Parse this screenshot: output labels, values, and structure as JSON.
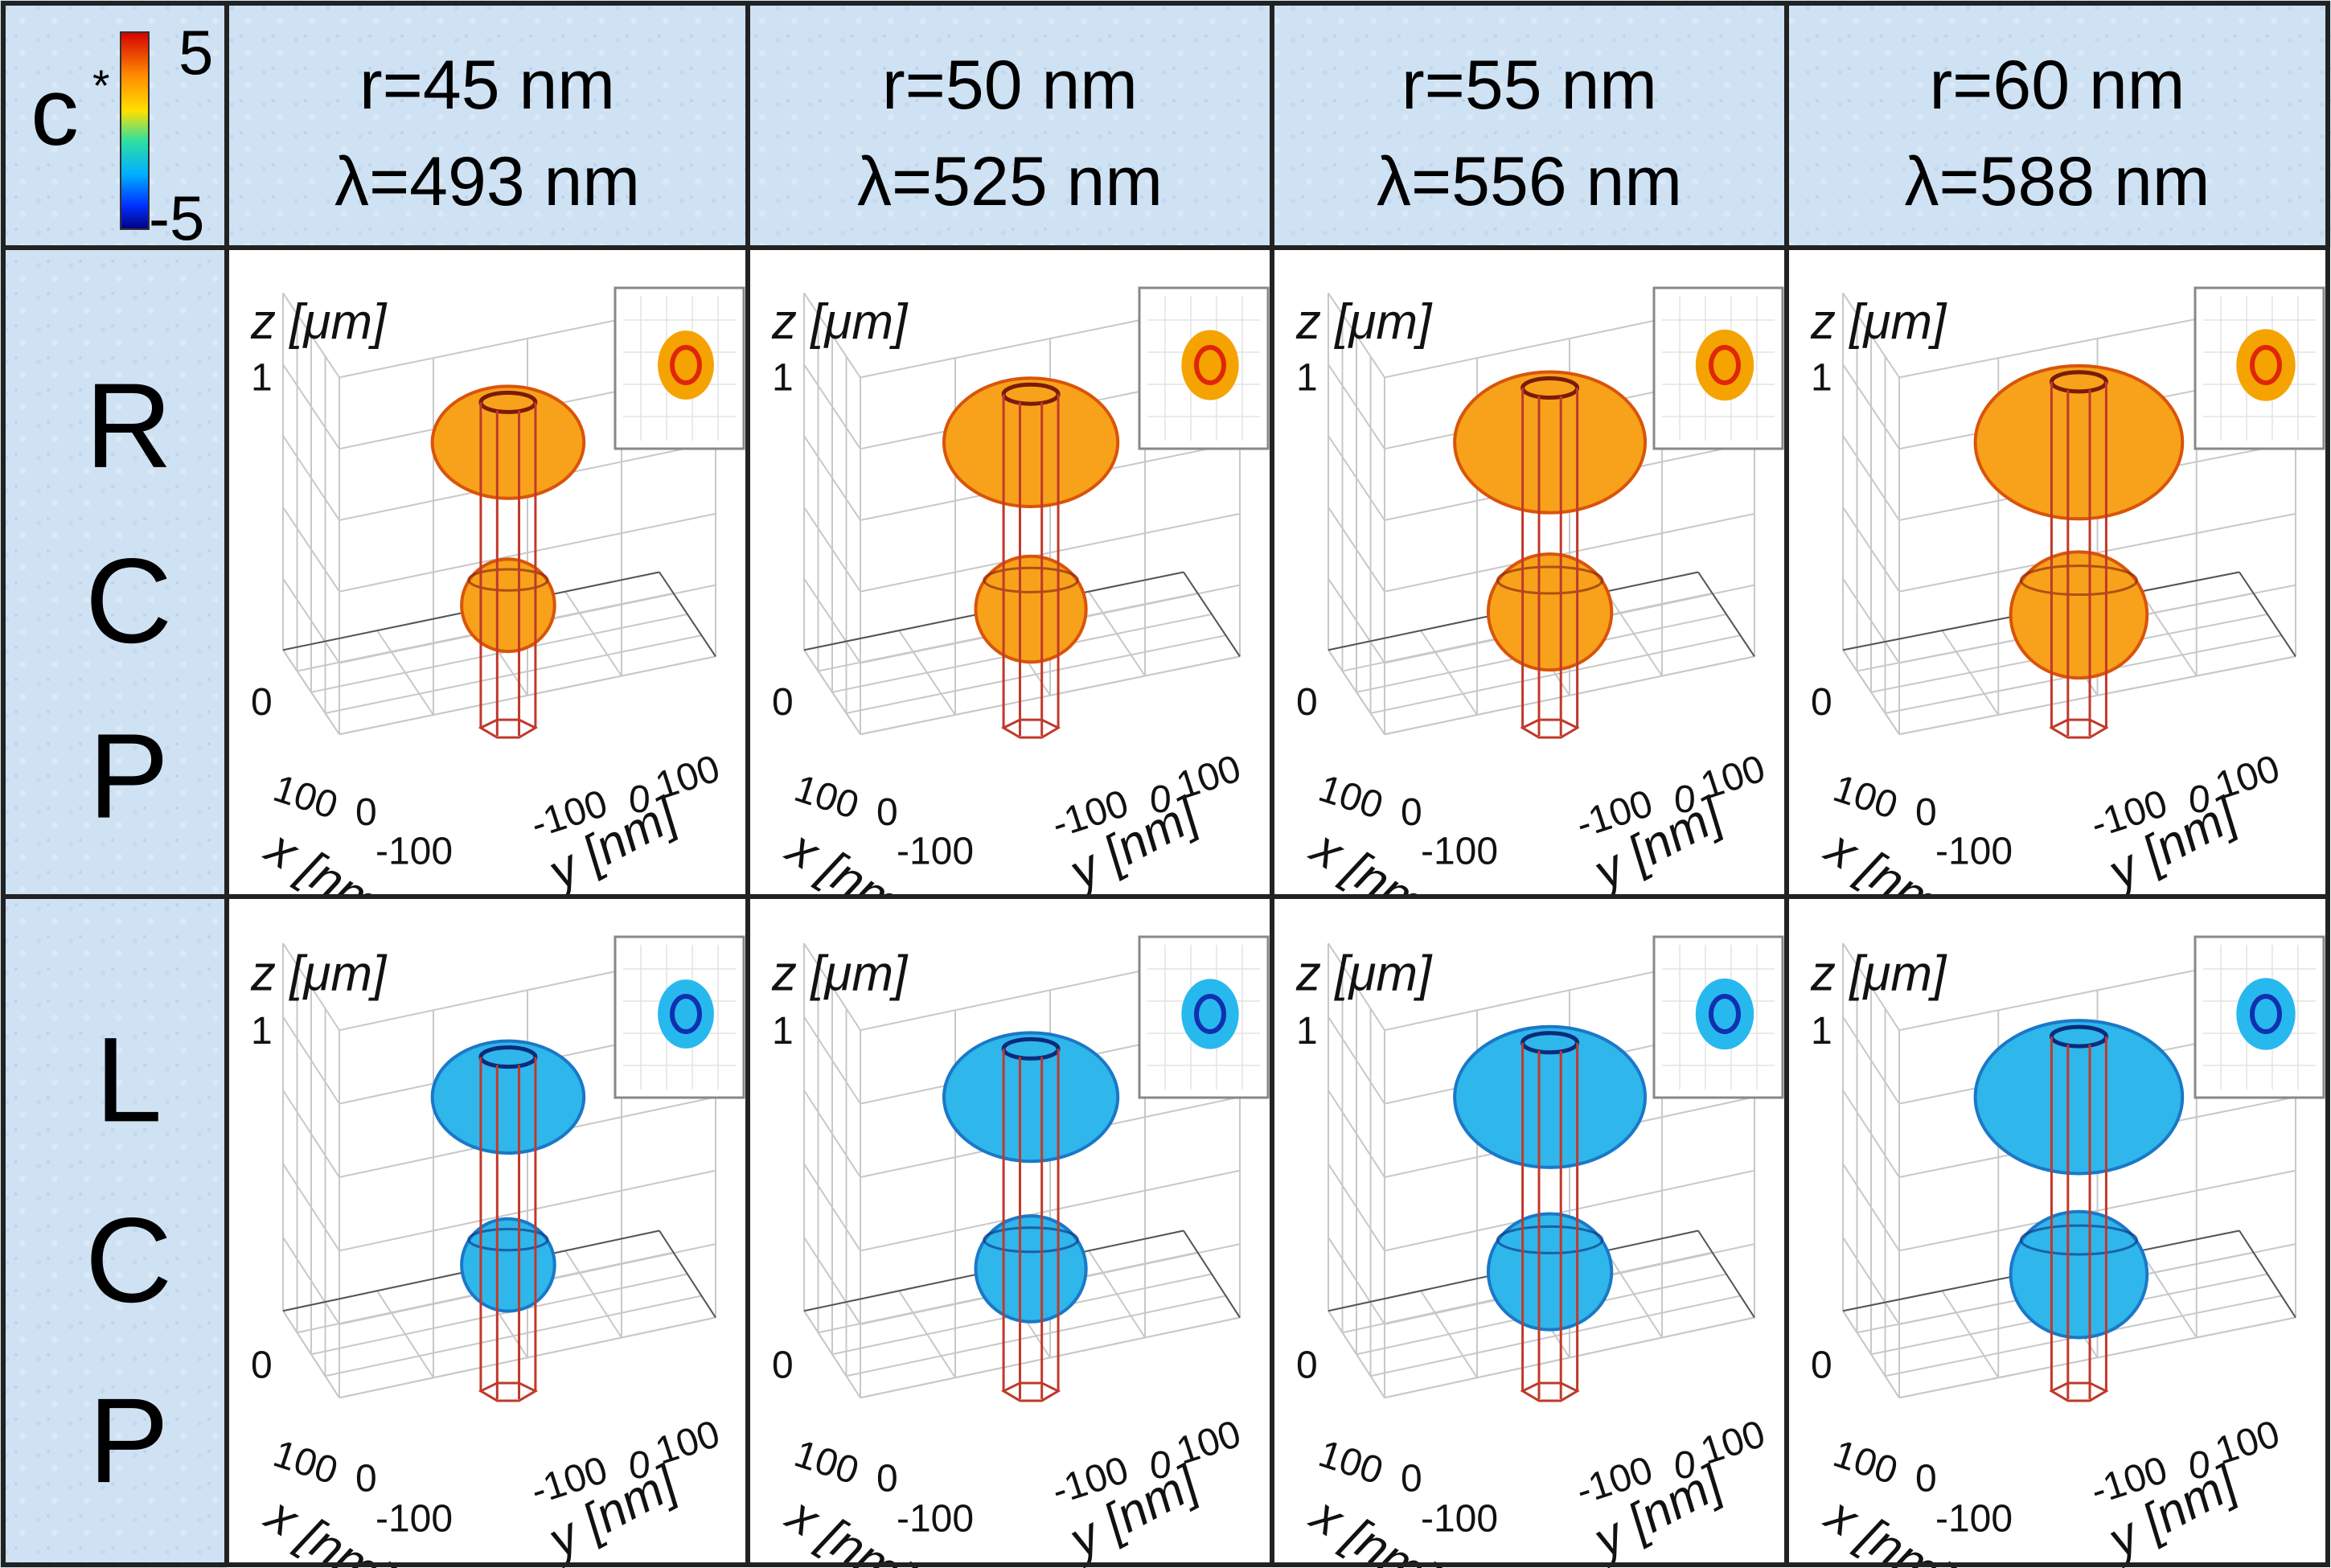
{
  "colorbar": {
    "symbol": "c",
    "superscript": "*",
    "max_label": "5",
    "min_label": "-5",
    "max_value": 5,
    "min_value": -5
  },
  "columns": [
    {
      "r": "r=45 nm",
      "lambda": "λ=493 nm",
      "r_nm": 45,
      "size_factor": 0.82
    },
    {
      "r": "r=50 nm",
      "lambda": "λ=525 nm",
      "r_nm": 50,
      "size_factor": 0.94
    },
    {
      "r": "r=55 nm",
      "lambda": "λ=556 nm",
      "r_nm": 55,
      "size_factor": 1.03
    },
    {
      "r": "r=60 nm",
      "lambda": "λ=588 nm",
      "r_nm": 60,
      "size_factor": 1.12
    }
  ],
  "rows": [
    {
      "letters": [
        "R",
        "C",
        "P"
      ],
      "polarization": "RCP",
      "sign": "positive",
      "fill_color": "#f7a21a",
      "edge_color": "#d9540a",
      "dark_color": "#7a1a0a",
      "inset_outer": "#f5a300",
      "inset_ring": "#e0260a"
    },
    {
      "letters": [
        "L",
        "C",
        "P"
      ],
      "polarization": "LCP",
      "sign": "negative",
      "fill_color": "#2fb6ea",
      "edge_color": "#1a78c8",
      "dark_color": "#0a2a7a",
      "inset_outer": "#27b8ee",
      "inset_ring": "#1030b0"
    }
  ],
  "axes": {
    "z_label": "z [μm]",
    "x_label": "x [nm]",
    "y_label": "y [nm]",
    "z_ticks": [
      "0",
      "1"
    ],
    "x_ticks": [
      "100",
      "0",
      "-100"
    ],
    "y_ticks": [
      "-100",
      "0",
      "100"
    ]
  },
  "colors": {
    "header_bg": "#cfe2f3",
    "grid_line": "#222222",
    "pillar": "#c0392b"
  }
}
